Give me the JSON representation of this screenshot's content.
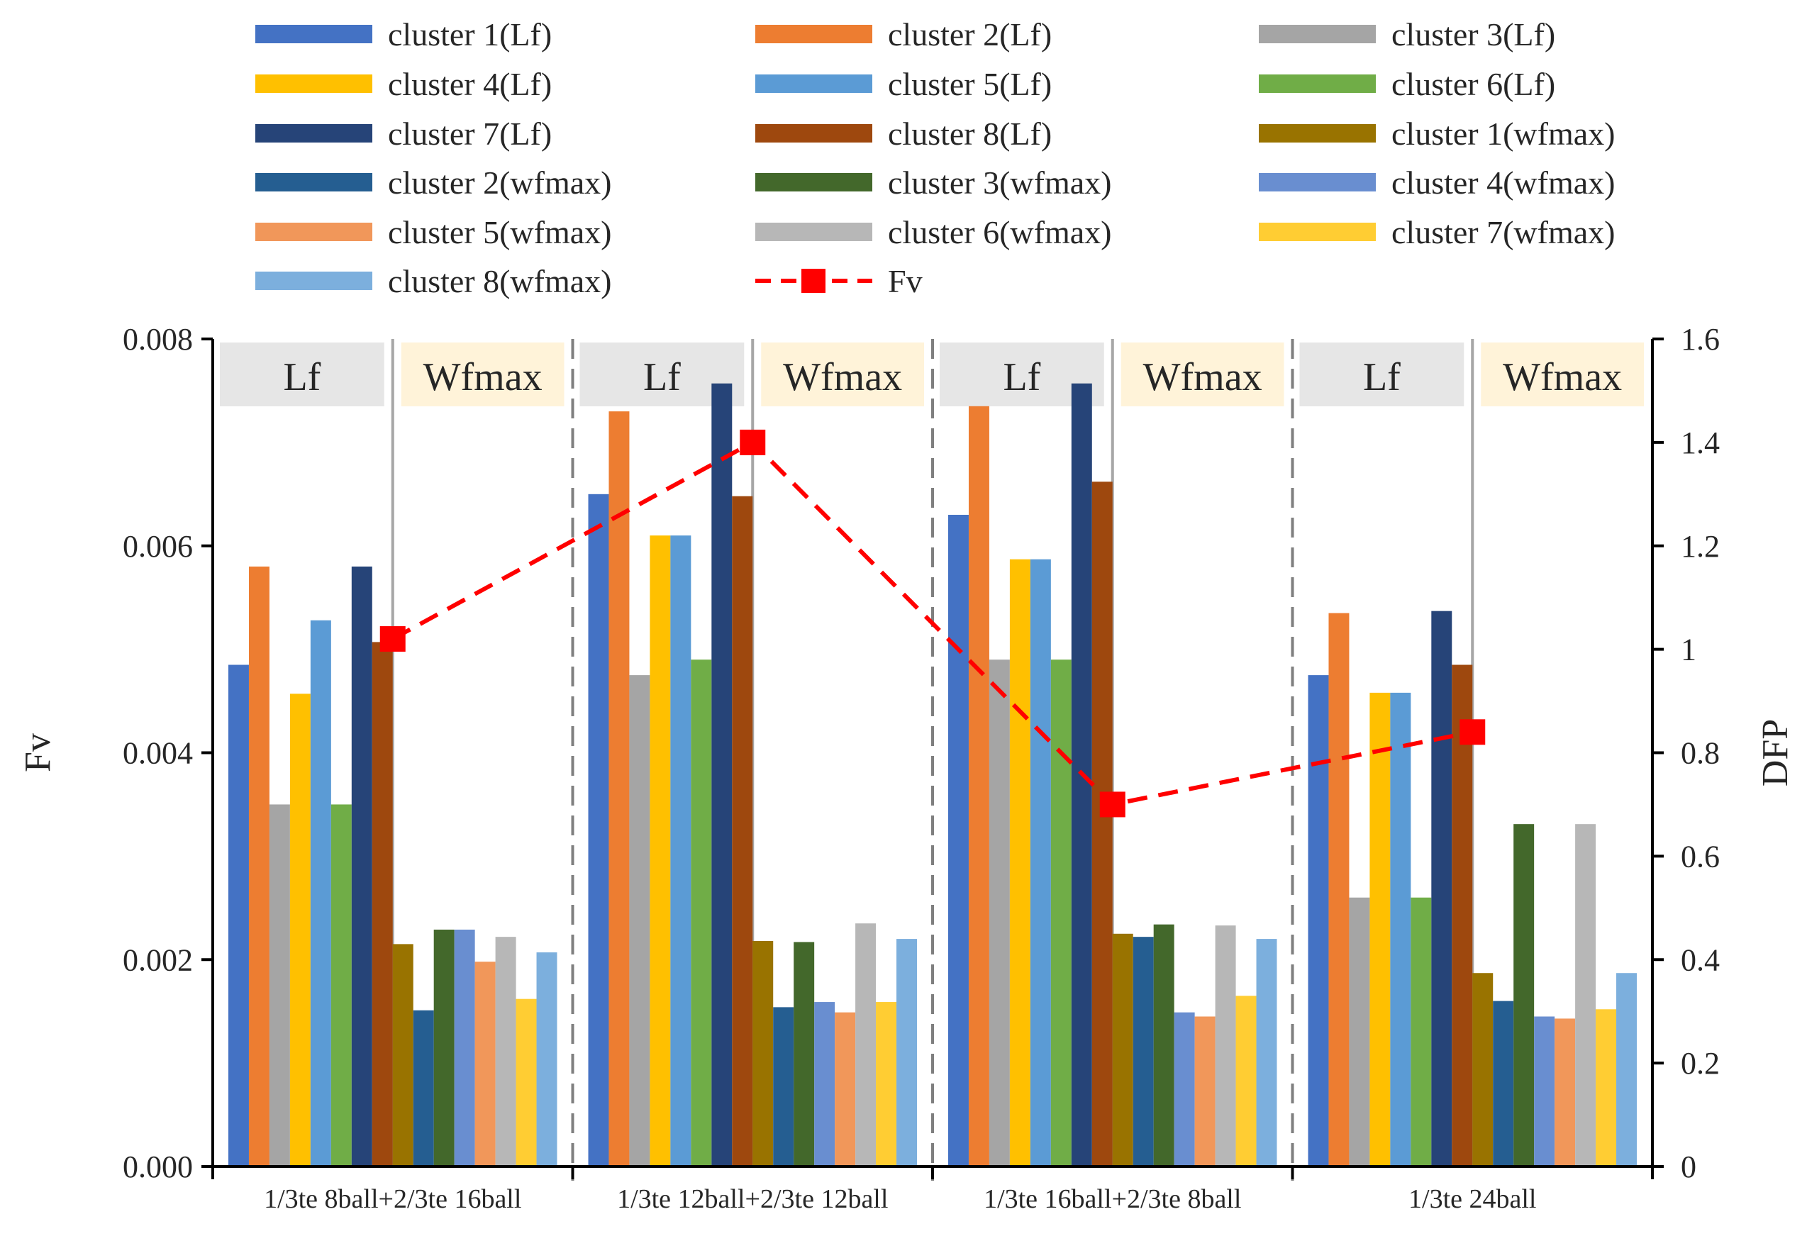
{
  "chart_data": {
    "type": "bar",
    "categories": [
      "1/3te 8ball+2/3te 16ball",
      "1/3te 12ball+2/3te 12ball",
      "1/3te 16ball+2/3te 8ball",
      "1/3te 24ball"
    ],
    "group_labels": [
      "Lf",
      "Wfmax"
    ],
    "ylabel": "Fv",
    "y2label": "DFP",
    "ylim": [
      0,
      0.008
    ],
    "y2lim": [
      0,
      1.6
    ],
    "yticks": [
      "0.000",
      "0.002",
      "0.004",
      "0.006",
      "0.008"
    ],
    "y2ticks": [
      "0",
      "0.2",
      "0.4",
      "0.6",
      "0.8",
      "1",
      "1.2",
      "1.4",
      "1.6"
    ],
    "series": [
      {
        "name": "cluster 1(Lf)",
        "color": "#4472C4",
        "values": [
          0.00485,
          0.0065,
          0.0063,
          0.00475
        ]
      },
      {
        "name": "cluster 2(Lf)",
        "color": "#ED7D31",
        "values": [
          0.0058,
          0.0073,
          0.00735,
          0.00535
        ]
      },
      {
        "name": "cluster 3(Lf)",
        "color": "#A5A5A5",
        "values": [
          0.0035,
          0.00475,
          0.0049,
          0.0026
        ]
      },
      {
        "name": "cluster 4(Lf)",
        "color": "#FFC000",
        "values": [
          0.00457,
          0.0061,
          0.00587,
          0.00458
        ]
      },
      {
        "name": "cluster 5(Lf)",
        "color": "#5B9BD5",
        "values": [
          0.00528,
          0.0061,
          0.00587,
          0.00458
        ]
      },
      {
        "name": "cluster 6(Lf)",
        "color": "#70AD47",
        "values": [
          0.0035,
          0.0049,
          0.0049,
          0.0026
        ]
      },
      {
        "name": "cluster 7(Lf)",
        "color": "#264478",
        "values": [
          0.0058,
          0.00757,
          0.00757,
          0.00537
        ]
      },
      {
        "name": "cluster 8(Lf)",
        "color": "#9E480E",
        "values": [
          0.00507,
          0.00648,
          0.00662,
          0.00485
        ]
      },
      {
        "name": "cluster 1(wfmax)",
        "color": "#997300",
        "values": [
          0.00215,
          0.00218,
          0.00225,
          0.00187
        ]
      },
      {
        "name": "cluster 2(wfmax)",
        "color": "#255E91",
        "values": [
          0.00151,
          0.00154,
          0.00222,
          0.0016
        ]
      },
      {
        "name": "cluster 3(wfmax)",
        "color": "#43682B",
        "values": [
          0.00229,
          0.00217,
          0.00234,
          0.00331
        ]
      },
      {
        "name": "cluster 4(wfmax)",
        "color": "#698ED0",
        "values": [
          0.00229,
          0.00159,
          0.00149,
          0.00145
        ]
      },
      {
        "name": "cluster 5(wfmax)",
        "color": "#F1975A",
        "values": [
          0.00198,
          0.00149,
          0.00145,
          0.00143
        ]
      },
      {
        "name": "cluster 6(wfmax)",
        "color": "#B7B7B7",
        "values": [
          0.00222,
          0.00235,
          0.00233,
          0.00331
        ]
      },
      {
        "name": "cluster 7(wfmax)",
        "color": "#FFCD33",
        "values": [
          0.00162,
          0.00159,
          0.00165,
          0.00152
        ]
      },
      {
        "name": "cluster 8(wfmax)",
        "color": "#7CAFDD",
        "values": [
          0.00207,
          0.0022,
          0.0022,
          0.00187
        ]
      }
    ],
    "line": {
      "name": "Fv",
      "color": "#FF0000",
      "axis": "right",
      "values": [
        1.02,
        1.4,
        0.7,
        0.84
      ]
    },
    "legend_position": "top"
  }
}
